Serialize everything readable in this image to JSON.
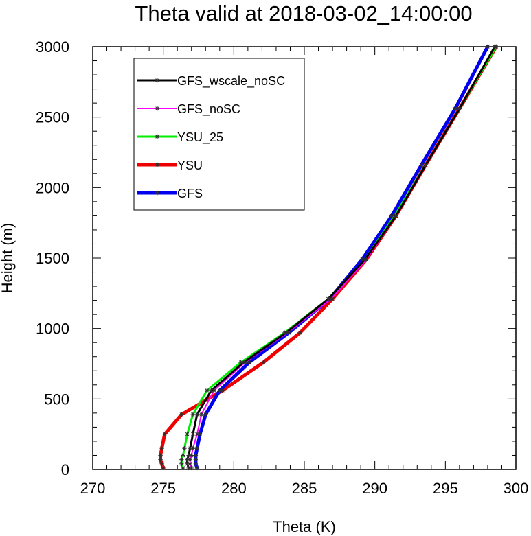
{
  "chart_data": {
    "type": "line",
    "title": "Theta valid at 2018-03-02_14:00:00",
    "xlabel": "Theta (K)",
    "ylabel": "Height (m)",
    "xlim": [
      270,
      300
    ],
    "ylim": [
      0,
      3000
    ],
    "xticks": [
      "270",
      "275",
      "280",
      "285",
      "290",
      "295",
      "300"
    ],
    "yticks": [
      "0",
      "500",
      "1000",
      "1500",
      "2000",
      "2500",
      "3000"
    ],
    "grid": false,
    "legend_position": "top-left inside",
    "series": [
      {
        "name": "GFS_wscale_noSC",
        "color": "#000000",
        "x": [
          276.8,
          276.7,
          276.7,
          276.8,
          276.9,
          277.1,
          277.4,
          278.4,
          280.7,
          283.7,
          286.7,
          289.3,
          291.5,
          293.6,
          296.0,
          298.5
        ],
        "y": [
          10,
          40,
          70,
          100,
          150,
          250,
          390,
          560,
          760,
          970,
          1210,
          1490,
          1800,
          2160,
          2560,
          3000
        ]
      },
      {
        "name": "GFS_noSC",
        "color": "#ff00ff",
        "x": [
          277.0,
          276.9,
          276.9,
          277.0,
          277.1,
          277.4,
          277.7,
          278.6,
          280.8,
          283.8,
          286.9,
          289.4,
          291.5,
          293.6,
          296.0,
          298.5
        ],
        "y": [
          10,
          40,
          70,
          100,
          150,
          250,
          390,
          560,
          760,
          970,
          1210,
          1490,
          1800,
          2160,
          2560,
          3000
        ]
      },
      {
        "name": "YSU_25",
        "color": "#00ee00",
        "x": [
          276.4,
          276.3,
          276.3,
          276.4,
          276.5,
          276.7,
          277.1,
          278.1,
          280.5,
          283.6,
          286.7,
          289.3,
          291.4,
          293.6,
          296.0,
          298.6
        ],
        "y": [
          10,
          40,
          70,
          100,
          150,
          250,
          390,
          560,
          760,
          970,
          1210,
          1490,
          1800,
          2160,
          2560,
          3000
        ]
      },
      {
        "name": "YSU",
        "color": "#ee0000",
        "x": [
          275.0,
          274.9,
          274.8,
          274.8,
          274.9,
          275.1,
          276.3,
          279.2,
          282.1,
          284.7,
          287.0,
          289.4,
          291.5,
          293.6,
          296.0,
          298.6
        ],
        "y": [
          10,
          40,
          70,
          100,
          150,
          250,
          390,
          560,
          760,
          970,
          1210,
          1490,
          1800,
          2160,
          2560,
          3000
        ]
      },
      {
        "name": "GFS",
        "color": "#0000ee",
        "x": [
          277.4,
          277.3,
          277.3,
          277.3,
          277.4,
          277.6,
          278.0,
          279.0,
          281.1,
          283.9,
          286.8,
          289.1,
          291.2,
          293.3,
          295.7,
          298.0
        ],
        "y": [
          10,
          40,
          70,
          100,
          150,
          250,
          390,
          560,
          760,
          970,
          1210,
          1490,
          1800,
          2160,
          2560,
          3000
        ]
      }
    ]
  }
}
